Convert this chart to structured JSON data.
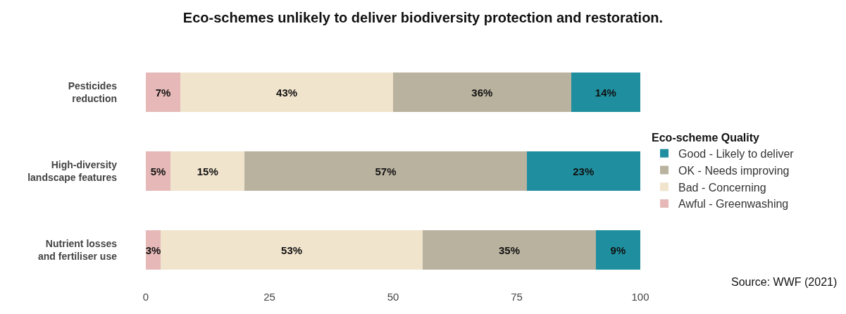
{
  "chart_data": {
    "type": "bar",
    "orientation": "horizontal",
    "stacked": true,
    "title": "Eco-schemes unlikely to deliver biodiversity protection and restoration.",
    "categories": [
      "Pesticides reduction",
      "High-diversity landscape features",
      "Nutrient losses and fertiliser use"
    ],
    "series": [
      {
        "name": "Awful - Greenwashing",
        "color": "#e6b9b8",
        "values": [
          7,
          5,
          3
        ],
        "value_labels": [
          "7%",
          "5%",
          "3%"
        ]
      },
      {
        "name": "Bad - Concerning",
        "color": "#f1e4cd",
        "values": [
          43,
          15,
          53
        ],
        "value_labels": [
          "43%",
          "15%",
          "53%"
        ]
      },
      {
        "name": "OK - Needs improving",
        "color": "#b9b29f",
        "values": [
          36,
          57,
          35
        ],
        "value_labels": [
          "36%",
          "57%",
          "35%"
        ]
      },
      {
        "name": "Good - Likely to deliver",
        "color": "#1f8f9f",
        "values": [
          14,
          23,
          9
        ],
        "value_labels": [
          "14%",
          "23%",
          "9%"
        ]
      }
    ],
    "legend_title": "Eco-scheme Quality",
    "legend": "right",
    "xlim": [
      0,
      100
    ],
    "xticks": [
      0,
      25,
      50,
      75,
      100
    ],
    "annotations": [
      "Source: WWF (2021)"
    ]
  }
}
